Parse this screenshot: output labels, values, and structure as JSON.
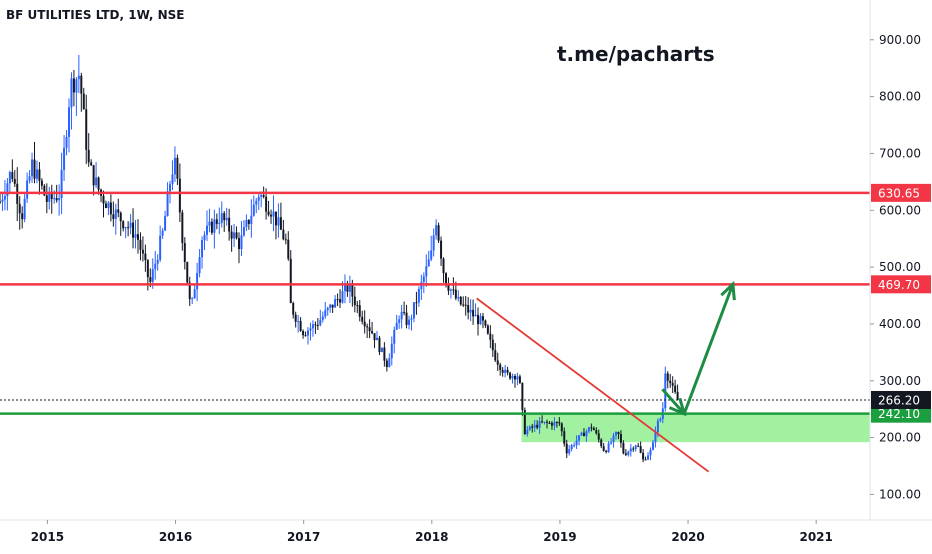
{
  "header": {
    "title": "BF UTILITIES LTD, 1W, NSE"
  },
  "watermark": "t.me/pacharts",
  "colors": {
    "up": "#2962ff",
    "down": "#131722",
    "resistance": "#f23645",
    "support": "#1b9e3e",
    "zone_fill": "#90ee90",
    "trendline": "#e53935",
    "projection": "#1e8c45",
    "current_label_bg": "#131722"
  },
  "chart_data": {
    "type": "candlestick",
    "title": "BF UTILITIES LTD, 1W, NSE",
    "xlabel": "",
    "ylabel": "",
    "xlim": [
      2014.63,
      2021.42
    ],
    "ylim": [
      55,
      970
    ],
    "x_ticks": [
      {
        "label": "2015",
        "x": 2015.0
      },
      {
        "label": "2016",
        "x": 2016.0
      },
      {
        "label": "2017",
        "x": 2017.0
      },
      {
        "label": "2018",
        "x": 2018.0
      },
      {
        "label": "2019",
        "x": 2019.0
      },
      {
        "label": "2020",
        "x": 2020.0
      },
      {
        "label": "2021",
        "x": 2021.0
      }
    ],
    "y_ticks": [
      {
        "label": "900.00",
        "value": 900
      },
      {
        "label": "800.00",
        "value": 800
      },
      {
        "label": "700.00",
        "value": 700
      },
      {
        "label": "600.00",
        "value": 600
      },
      {
        "label": "500.00",
        "value": 500
      },
      {
        "label": "400.00",
        "value": 400
      },
      {
        "label": "300.00",
        "value": 300
      },
      {
        "label": "200.00",
        "value": 200
      },
      {
        "label": "100.00",
        "value": 100
      }
    ],
    "grid": false,
    "price_path": [
      [
        2014.63,
        615
      ],
      [
        2014.72,
        670
      ],
      [
        2014.8,
        590
      ],
      [
        2014.88,
        680
      ],
      [
        2015.0,
        615
      ],
      [
        2015.1,
        630
      ],
      [
        2015.18,
        820
      ],
      [
        2015.25,
        840
      ],
      [
        2015.32,
        680
      ],
      [
        2015.42,
        625
      ],
      [
        2015.55,
        590
      ],
      [
        2015.7,
        555
      ],
      [
        2015.8,
        470
      ],
      [
        2015.9,
        560
      ],
      [
        2015.97,
        670
      ],
      [
        2016.0,
        680
      ],
      [
        2016.05,
        560
      ],
      [
        2016.12,
        420
      ],
      [
        2016.2,
        550
      ],
      [
        2016.35,
        590
      ],
      [
        2016.5,
        540
      ],
      [
        2016.6,
        600
      ],
      [
        2016.65,
        630
      ],
      [
        2016.75,
        600
      ],
      [
        2016.87,
        540
      ],
      [
        2016.9,
        430
      ],
      [
        2017.0,
        385
      ],
      [
        2017.1,
        400
      ],
      [
        2017.25,
        440
      ],
      [
        2017.35,
        465
      ],
      [
        2017.45,
        415
      ],
      [
        2017.55,
        380
      ],
      [
        2017.65,
        330
      ],
      [
        2017.75,
        420
      ],
      [
        2017.82,
        400
      ],
      [
        2017.92,
        470
      ],
      [
        2018.0,
        525
      ],
      [
        2018.03,
        590
      ],
      [
        2018.1,
        480
      ],
      [
        2018.2,
        440
      ],
      [
        2018.3,
        420
      ],
      [
        2018.4,
        400
      ],
      [
        2018.5,
        340
      ],
      [
        2018.58,
        310
      ],
      [
        2018.68,
        310
      ],
      [
        2018.72,
        210
      ],
      [
        2018.85,
        225
      ],
      [
        2019.0,
        225
      ],
      [
        2019.05,
        175
      ],
      [
        2019.15,
        200
      ],
      [
        2019.25,
        220
      ],
      [
        2019.35,
        175
      ],
      [
        2019.45,
        210
      ],
      [
        2019.5,
        170
      ],
      [
        2019.6,
        190
      ],
      [
        2019.65,
        160
      ],
      [
        2019.72,
        180
      ],
      [
        2019.75,
        220
      ],
      [
        2019.8,
        240
      ],
      [
        2019.82,
        320
      ],
      [
        2019.88,
        285
      ],
      [
        2019.92,
        266
      ]
    ],
    "series": [
      {
        "name": "Resistance",
        "type": "hline",
        "value": 630.65,
        "label": "630.65"
      },
      {
        "name": "Resistance",
        "type": "hline",
        "value": 469.7,
        "label": "469.70"
      },
      {
        "name": "Support",
        "type": "hline",
        "value": 242.1,
        "label": "242.10"
      },
      {
        "name": "Last price",
        "type": "hline",
        "value": 266.2,
        "label": "266.20"
      }
    ],
    "support_zone": {
      "y0": 192,
      "y1": 242.1,
      "x0": 2018.7,
      "x1": 2021.42
    },
    "trendline": {
      "points": [
        [
          2018.35,
          445
        ],
        [
          2020.16,
          140
        ]
      ]
    },
    "projection_arrow": {
      "points": [
        [
          2019.8,
          285
        ],
        [
          2019.97,
          242
        ],
        [
          2020.35,
          470
        ]
      ]
    }
  }
}
